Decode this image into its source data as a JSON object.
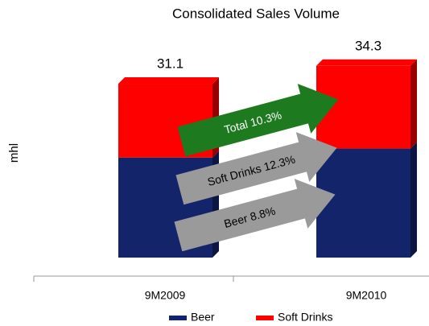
{
  "chart_data": {
    "type": "bar",
    "stacked": true,
    "title": "Consolidated Sales Volume",
    "y_label": "mhl",
    "categories": [
      "9M2009",
      "9M2010"
    ],
    "series": [
      {
        "name": "Beer",
        "color": "#14246a",
        "values": [
          17.9,
          19.5
        ]
      },
      {
        "name": "Soft Drinks",
        "color": "#ff0000",
        "values": [
          13.2,
          14.8
        ]
      }
    ],
    "totals": [
      31.1,
      34.3
    ],
    "ylim": [
      0,
      36
    ],
    "annotations": [
      {
        "text": "Total 10.3%",
        "color": "#1e7a1e"
      },
      {
        "text": "Soft Drinks 12.3%",
        "color": "#9a9a9a"
      },
      {
        "text": "Beer  8.8%",
        "color": "#9a9a9a"
      }
    ],
    "legend": "bottom"
  }
}
